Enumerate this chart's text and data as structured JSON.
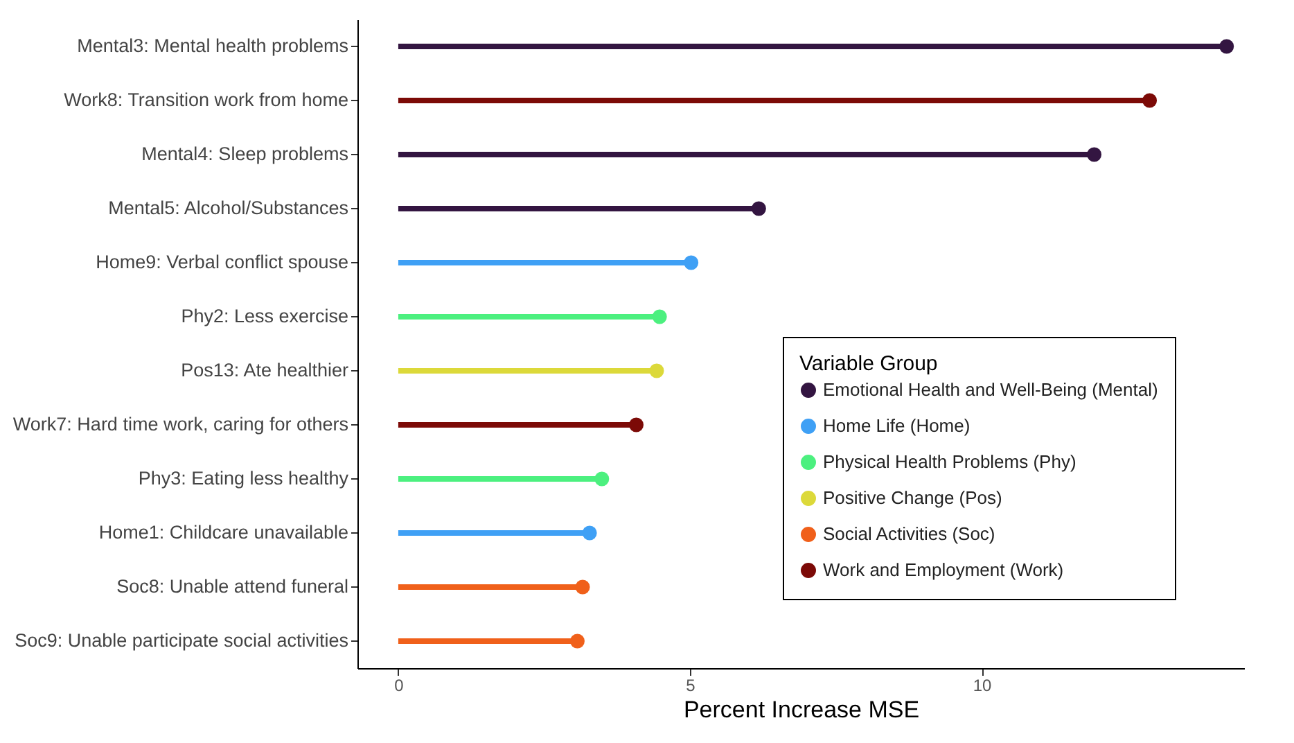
{
  "chart_data": {
    "type": "lollipop",
    "xlabel": "Percent Increase MSE",
    "legend_title": "Variable Group",
    "orientation": "horizontal",
    "categories": [
      "Mental3: Mental health problems",
      "Work8: Transition work from home",
      "Mental4: Sleep problems",
      "Mental5: Alcohol/Substances",
      "Home9: Verbal conflict spouse",
      "Phy2: Less exercise",
      "Pos13: Ate healthier",
      "Work7: Hard time work, caring for others",
      "Phy3: Eating less healthy",
      "Home1: Childcare unavailable",
      "Soc8: Unable attend funeral",
      "Soc9: Unable participate social activities"
    ],
    "series": [
      {
        "name": "Emotional Health and Well-Being (Mental)",
        "color": "#331541",
        "values": [
          14.2,
          null,
          11.93,
          6.18,
          null,
          null,
          null,
          null,
          null,
          null,
          null,
          null
        ]
      },
      {
        "name": "Home Life (Home)",
        "color": "#3fa0f5",
        "values": [
          null,
          null,
          null,
          null,
          5.02,
          null,
          null,
          null,
          null,
          3.28,
          null,
          null
        ]
      },
      {
        "name": "Physical Health Problems (Phy)",
        "color": "#4cf07f",
        "values": [
          null,
          null,
          null,
          null,
          null,
          4.48,
          null,
          null,
          3.49,
          null,
          null,
          null
        ]
      },
      {
        "name": "Positive Change (Pos)",
        "color": "#dcd93a",
        "values": [
          null,
          null,
          null,
          null,
          null,
          null,
          4.43,
          null,
          null,
          null,
          null,
          null
        ]
      },
      {
        "name": "Social Activities (Soc)",
        "color": "#f0601a",
        "values": [
          null,
          null,
          null,
          null,
          null,
          null,
          null,
          null,
          null,
          null,
          3.16,
          3.07
        ]
      },
      {
        "name": "Work and Employment (Work)",
        "color": "#7c0a07",
        "values": [
          null,
          12.88,
          null,
          null,
          null,
          null,
          null,
          4.08,
          null,
          null,
          null,
          null
        ]
      }
    ],
    "xlim": [
      -0.7,
      14.5
    ],
    "xticks": [
      0,
      5,
      10
    ],
    "grid": false,
    "legend": "bottom right",
    "marker": "circle"
  }
}
